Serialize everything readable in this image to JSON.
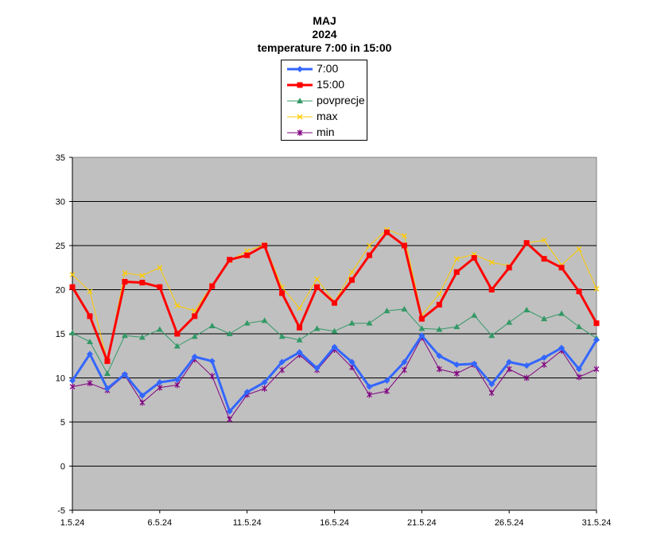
{
  "chart_data": {
    "type": "line",
    "title_lines": [
      "MAJ",
      "2024",
      "temperature 7:00 in 15:00"
    ],
    "xlabel": "",
    "ylabel": "",
    "ylim": [
      -5,
      35
    ],
    "y_ticks": [
      35,
      30,
      25,
      20,
      15,
      10,
      5,
      0,
      -5
    ],
    "x": [
      "1.5.24",
      "2.5.24",
      "3.5.24",
      "4.5.24",
      "5.5.24",
      "6.5.24",
      "7.5.24",
      "8.5.24",
      "9.5.24",
      "10.5.24",
      "11.5.24",
      "12.5.24",
      "13.5.24",
      "14.5.24",
      "15.5.24",
      "16.5.24",
      "17.5.24",
      "18.5.24",
      "19.5.24",
      "20.5.24",
      "21.5.24",
      "22.5.24",
      "23.5.24",
      "24.5.24",
      "25.5.24",
      "26.5.24",
      "27.5.24",
      "28.5.24",
      "29.5.24",
      "30.5.24",
      "31.5.24"
    ],
    "x_tick_labels": [
      "1.5.24",
      "6.5.24",
      "11.5.24",
      "16.5.24",
      "21.5.24",
      "26.5.24",
      "31.5.24"
    ],
    "x_tick_indices": [
      0,
      5,
      10,
      15,
      20,
      25,
      30
    ],
    "grid": true,
    "legend_position": "top-center",
    "plot_background": "#c0c0c0",
    "series": [
      {
        "name": "7:00",
        "color": "#3366ff",
        "marker": "diamond",
        "width": 3,
        "values": [
          9.7,
          12.7,
          8.8,
          10.4,
          8.0,
          9.5,
          9.8,
          12.4,
          11.9,
          6.2,
          8.4,
          9.5,
          11.8,
          12.9,
          11.1,
          13.5,
          11.8,
          9.0,
          9.7,
          11.8,
          14.8,
          12.5,
          11.5,
          11.6,
          9.3,
          11.8,
          11.4,
          12.3,
          13.4,
          11.0,
          14.3
        ]
      },
      {
        "name": "15:00",
        "color": "#ff0000",
        "marker": "square",
        "width": 3,
        "values": [
          20.3,
          17.0,
          11.9,
          20.9,
          20.8,
          20.3,
          15.0,
          17.0,
          20.4,
          23.4,
          23.9,
          25.0,
          19.6,
          15.7,
          20.3,
          18.5,
          21.1,
          23.9,
          26.5,
          25.0,
          16.7,
          18.3,
          22.0,
          23.6,
          20.0,
          22.5,
          25.3,
          23.5,
          22.5,
          19.8,
          16.2
        ]
      },
      {
        "name": "povprecje",
        "color": "#339966",
        "marker": "triangle",
        "width": 1,
        "values": [
          15.1,
          14.1,
          10.5,
          14.8,
          14.6,
          15.5,
          13.6,
          14.7,
          15.9,
          15.0,
          16.2,
          16.5,
          14.7,
          14.3,
          15.6,
          15.3,
          16.2,
          16.2,
          17.6,
          17.8,
          15.6,
          15.5,
          15.8,
          17.1,
          14.8,
          16.3,
          17.7,
          16.7,
          17.3,
          15.8,
          14.5
        ]
      },
      {
        "name": "max",
        "color": "#ffcc00",
        "marker": "x",
        "width": 1,
        "values": [
          21.7,
          19.8,
          11.9,
          21.9,
          21.6,
          22.5,
          18.2,
          17.6,
          20.5,
          23.3,
          24.4,
          25.1,
          20.3,
          17.9,
          21.2,
          18.6,
          22.0,
          25.0,
          26.8,
          26.1,
          17.1,
          19.5,
          23.5,
          24.0,
          23.1,
          22.7,
          25.3,
          25.6,
          22.8,
          24.6,
          20.1
        ]
      },
      {
        "name": "min",
        "color": "#800080",
        "marker": "star",
        "width": 1,
        "values": [
          9.0,
          9.4,
          8.6,
          10.3,
          7.2,
          8.9,
          9.2,
          12.1,
          10.2,
          5.3,
          8.1,
          8.8,
          10.9,
          12.6,
          10.9,
          13.2,
          11.2,
          8.1,
          8.5,
          10.9,
          14.6,
          11.0,
          10.5,
          11.5,
          8.3,
          11.0,
          10.0,
          11.5,
          13.1,
          10.1,
          11.0
        ]
      }
    ]
  }
}
